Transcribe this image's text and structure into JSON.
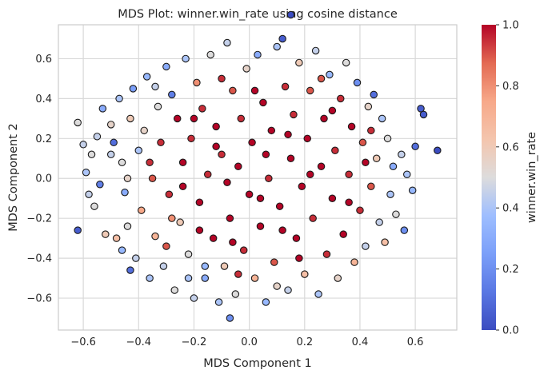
{
  "chart_data": {
    "type": "scatter",
    "title": "MDS Plot: winner.win_rate using cosine distance",
    "xlabel": "MDS Component 1",
    "ylabel": "MDS Component 2",
    "xlim": [
      -0.69,
      0.75
    ],
    "ylim": [
      -0.76,
      0.77
    ],
    "x_ticks": [
      -0.6,
      -0.4,
      -0.2,
      0.0,
      0.2,
      0.4,
      0.6
    ],
    "x_tick_labels": [
      "−0.6",
      "−0.4",
      "−0.2",
      "0.0",
      "0.2",
      "0.4",
      "0.6"
    ],
    "y_ticks": [
      -0.6,
      -0.4,
      -0.2,
      0.0,
      0.2,
      0.4,
      0.6
    ],
    "y_tick_labels": [
      "−0.6",
      "−0.4",
      "−0.2",
      "0.0",
      "0.2",
      "0.4",
      "0.6"
    ],
    "grid": true,
    "colormap": "coolwarm",
    "colorbar": {
      "label": "winner.win_rate",
      "range": [
        0.0,
        1.0
      ],
      "ticks": [
        0.0,
        0.2,
        0.4,
        0.6,
        0.8,
        1.0
      ],
      "tick_labels": [
        "0.0",
        "0.2",
        "0.4",
        "0.6",
        "0.8",
        "1.0"
      ]
    },
    "points": [
      {
        "x": -0.62,
        "y": 0.28,
        "c": 0.5
      },
      {
        "x": -0.62,
        "y": -0.26,
        "c": 0.05
      },
      {
        "x": -0.6,
        "y": 0.17,
        "c": 0.45
      },
      {
        "x": -0.59,
        "y": 0.03,
        "c": 0.4
      },
      {
        "x": -0.58,
        "y": -0.08,
        "c": 0.45
      },
      {
        "x": -0.57,
        "y": 0.12,
        "c": 0.5
      },
      {
        "x": -0.56,
        "y": -0.14,
        "c": 0.5
      },
      {
        "x": -0.55,
        "y": 0.21,
        "c": 0.45
      },
      {
        "x": -0.54,
        "y": -0.03,
        "c": 0.15
      },
      {
        "x": -0.53,
        "y": 0.35,
        "c": 0.3
      },
      {
        "x": -0.52,
        "y": -0.28,
        "c": 0.6
      },
      {
        "x": -0.5,
        "y": 0.27,
        "c": 0.55
      },
      {
        "x": -0.49,
        "y": 0.18,
        "c": 0.1
      },
      {
        "x": -0.48,
        "y": -0.3,
        "c": 0.65
      },
      {
        "x": -0.47,
        "y": 0.4,
        "c": 0.4
      },
      {
        "x": -0.46,
        "y": -0.36,
        "c": 0.35
      },
      {
        "x": -0.46,
        "y": 0.08,
        "c": 0.5
      },
      {
        "x": -0.45,
        "y": -0.07,
        "c": 0.3
      },
      {
        "x": -0.44,
        "y": -0.24,
        "c": 0.5
      },
      {
        "x": -0.43,
        "y": 0.3,
        "c": 0.6
      },
      {
        "x": -0.43,
        "y": -0.46,
        "c": 0.1
      },
      {
        "x": -0.42,
        "y": 0.45,
        "c": 0.25
      },
      {
        "x": -0.41,
        "y": -0.4,
        "c": 0.45
      },
      {
        "x": -0.4,
        "y": 0.14,
        "c": 0.4
      },
      {
        "x": -0.39,
        "y": -0.16,
        "c": 0.75
      },
      {
        "x": -0.38,
        "y": 0.24,
        "c": 0.55
      },
      {
        "x": -0.37,
        "y": 0.51,
        "c": 0.35
      },
      {
        "x": -0.36,
        "y": -0.5,
        "c": 0.4
      },
      {
        "x": -0.35,
        "y": 0.0,
        "c": 0.9
      },
      {
        "x": -0.34,
        "y": -0.29,
        "c": 0.7
      },
      {
        "x": -0.33,
        "y": 0.36,
        "c": 0.5
      },
      {
        "x": -0.32,
        "y": 0.18,
        "c": 0.95
      },
      {
        "x": -0.31,
        "y": -0.44,
        "c": 0.45
      },
      {
        "x": -0.3,
        "y": 0.56,
        "c": 0.3
      },
      {
        "x": -0.29,
        "y": -0.08,
        "c": 0.95
      },
      {
        "x": -0.28,
        "y": 0.42,
        "c": 0.15
      },
      {
        "x": -0.27,
        "y": -0.56,
        "c": 0.5
      },
      {
        "x": -0.26,
        "y": 0.3,
        "c": 1.0
      },
      {
        "x": -0.25,
        "y": -0.22,
        "c": 0.6
      },
      {
        "x": -0.24,
        "y": 0.08,
        "c": 1.0
      },
      {
        "x": -0.23,
        "y": 0.6,
        "c": 0.4
      },
      {
        "x": -0.22,
        "y": -0.38,
        "c": 0.5
      },
      {
        "x": -0.21,
        "y": 0.2,
        "c": 0.95
      },
      {
        "x": -0.2,
        "y": -0.6,
        "c": 0.45
      },
      {
        "x": -0.19,
        "y": 0.48,
        "c": 0.8
      },
      {
        "x": -0.18,
        "y": -0.12,
        "c": 1.0
      },
      {
        "x": -0.17,
        "y": 0.35,
        "c": 0.95
      },
      {
        "x": -0.16,
        "y": -0.5,
        "c": 0.3
      },
      {
        "x": -0.15,
        "y": 0.02,
        "c": 0.95
      },
      {
        "x": -0.14,
        "y": 0.62,
        "c": 0.5
      },
      {
        "x": -0.13,
        "y": -0.3,
        "c": 1.0
      },
      {
        "x": -0.12,
        "y": 0.26,
        "c": 1.0
      },
      {
        "x": -0.11,
        "y": -0.62,
        "c": 0.4
      },
      {
        "x": -0.1,
        "y": 0.12,
        "c": 0.95
      },
      {
        "x": -0.09,
        "y": -0.44,
        "c": 0.6
      },
      {
        "x": -0.08,
        "y": 0.68,
        "c": 0.45
      },
      {
        "x": -0.07,
        "y": -0.2,
        "c": 1.0
      },
      {
        "x": -0.06,
        "y": 0.44,
        "c": 0.9
      },
      {
        "x": -0.05,
        "y": -0.58,
        "c": 0.5
      },
      {
        "x": -0.04,
        "y": 0.06,
        "c": 1.0
      },
      {
        "x": -0.03,
        "y": 0.3,
        "c": 0.95
      },
      {
        "x": -0.02,
        "y": -0.36,
        "c": 0.95
      },
      {
        "x": -0.01,
        "y": 0.55,
        "c": 0.55
      },
      {
        "x": 0.0,
        "y": -0.08,
        "c": 1.0
      },
      {
        "x": 0.01,
        "y": 0.18,
        "c": 1.0
      },
      {
        "x": 0.02,
        "y": -0.5,
        "c": 0.7
      },
      {
        "x": 0.03,
        "y": 0.62,
        "c": 0.3
      },
      {
        "x": 0.04,
        "y": -0.24,
        "c": 1.0
      },
      {
        "x": 0.05,
        "y": 0.38,
        "c": 1.0
      },
      {
        "x": 0.06,
        "y": -0.62,
        "c": 0.35
      },
      {
        "x": 0.07,
        "y": 0.0,
        "c": 0.95
      },
      {
        "x": 0.08,
        "y": 0.24,
        "c": 1.0
      },
      {
        "x": 0.09,
        "y": -0.42,
        "c": 0.9
      },
      {
        "x": 0.1,
        "y": 0.66,
        "c": 0.4
      },
      {
        "x": 0.11,
        "y": -0.14,
        "c": 1.0
      },
      {
        "x": 0.12,
        "y": 0.7,
        "c": 0.05
      },
      {
        "x": 0.13,
        "y": 0.46,
        "c": 0.95
      },
      {
        "x": 0.14,
        "y": -0.56,
        "c": 0.45
      },
      {
        "x": 0.15,
        "y": 0.1,
        "c": 1.0
      },
      {
        "x": 0.16,
        "y": 0.32,
        "c": 0.95
      },
      {
        "x": 0.17,
        "y": -0.3,
        "c": 1.0
      },
      {
        "x": 0.18,
        "y": 0.58,
        "c": 0.6
      },
      {
        "x": 0.19,
        "y": -0.04,
        "c": 1.0
      },
      {
        "x": 0.2,
        "y": -0.48,
        "c": 0.65
      },
      {
        "x": 0.21,
        "y": 0.2,
        "c": 1.0
      },
      {
        "x": 0.22,
        "y": 0.44,
        "c": 0.9
      },
      {
        "x": 0.23,
        "y": -0.2,
        "c": 0.95
      },
      {
        "x": 0.24,
        "y": 0.64,
        "c": 0.45
      },
      {
        "x": 0.25,
        "y": -0.58,
        "c": 0.4
      },
      {
        "x": 0.26,
        "y": 0.06,
        "c": 1.0
      },
      {
        "x": 0.27,
        "y": 0.3,
        "c": 1.0
      },
      {
        "x": 0.28,
        "y": -0.38,
        "c": 0.95
      },
      {
        "x": 0.29,
        "y": 0.52,
        "c": 0.35
      },
      {
        "x": 0.3,
        "y": -0.1,
        "c": 1.0
      },
      {
        "x": 0.31,
        "y": 0.14,
        "c": 0.95
      },
      {
        "x": 0.32,
        "y": -0.5,
        "c": 0.55
      },
      {
        "x": 0.33,
        "y": 0.4,
        "c": 0.95
      },
      {
        "x": 0.34,
        "y": -0.28,
        "c": 1.0
      },
      {
        "x": 0.35,
        "y": 0.58,
        "c": 0.5
      },
      {
        "x": 0.36,
        "y": 0.02,
        "c": 0.95
      },
      {
        "x": 0.37,
        "y": 0.26,
        "c": 1.0
      },
      {
        "x": 0.38,
        "y": -0.42,
        "c": 0.7
      },
      {
        "x": 0.39,
        "y": 0.48,
        "c": 0.2
      },
      {
        "x": 0.4,
        "y": -0.16,
        "c": 0.95
      },
      {
        "x": 0.41,
        "y": 0.18,
        "c": 0.9
      },
      {
        "x": 0.42,
        "y": -0.34,
        "c": 0.45
      },
      {
        "x": 0.43,
        "y": 0.36,
        "c": 0.55
      },
      {
        "x": 0.44,
        "y": -0.04,
        "c": 0.9
      },
      {
        "x": 0.45,
        "y": 0.42,
        "c": 0.1
      },
      {
        "x": 0.46,
        "y": 0.1,
        "c": 0.6
      },
      {
        "x": 0.47,
        "y": -0.22,
        "c": 0.45
      },
      {
        "x": 0.48,
        "y": 0.3,
        "c": 0.4
      },
      {
        "x": 0.49,
        "y": -0.32,
        "c": 0.65
      },
      {
        "x": 0.5,
        "y": 0.2,
        "c": 0.5
      },
      {
        "x": 0.51,
        "y": -0.08,
        "c": 0.4
      },
      {
        "x": 0.52,
        "y": 0.06,
        "c": 0.3
      },
      {
        "x": 0.53,
        "y": -0.18,
        "c": 0.5
      },
      {
        "x": 0.55,
        "y": 0.12,
        "c": 0.45
      },
      {
        "x": 0.56,
        "y": -0.26,
        "c": 0.2
      },
      {
        "x": 0.57,
        "y": 0.02,
        "c": 0.4
      },
      {
        "x": 0.59,
        "y": -0.06,
        "c": 0.35
      },
      {
        "x": 0.6,
        "y": 0.16,
        "c": 0.1
      },
      {
        "x": 0.62,
        "y": 0.35,
        "c": 0.05
      },
      {
        "x": 0.63,
        "y": 0.32,
        "c": 0.05
      },
      {
        "x": 0.68,
        "y": 0.14,
        "c": 0.0
      },
      {
        "x": 0.15,
        "y": 0.82,
        "c": 0.0
      },
      {
        "x": -0.07,
        "y": -0.7,
        "c": 0.2
      },
      {
        "x": -0.16,
        "y": -0.44,
        "c": 0.35
      },
      {
        "x": -0.28,
        "y": -0.2,
        "c": 0.8
      },
      {
        "x": -0.36,
        "y": 0.08,
        "c": 0.95
      },
      {
        "x": -0.24,
        "y": -0.04,
        "c": 1.0
      },
      {
        "x": -0.12,
        "y": 0.16,
        "c": 1.0
      },
      {
        "x": 0.06,
        "y": 0.12,
        "c": 1.0
      },
      {
        "x": 0.12,
        "y": -0.26,
        "c": 1.0
      },
      {
        "x": 0.22,
        "y": 0.02,
        "c": 1.0
      },
      {
        "x": 0.3,
        "y": 0.34,
        "c": 1.0
      },
      {
        "x": -0.06,
        "y": -0.32,
        "c": 1.0
      },
      {
        "x": -0.2,
        "y": 0.3,
        "c": 1.0
      },
      {
        "x": 0.02,
        "y": 0.44,
        "c": 1.0
      },
      {
        "x": 0.18,
        "y": -0.4,
        "c": 1.0
      },
      {
        "x": 0.36,
        "y": -0.12,
        "c": 1.0
      },
      {
        "x": -0.3,
        "y": -0.34,
        "c": 0.9
      },
      {
        "x": -0.44,
        "y": 0.0,
        "c": 0.55
      },
      {
        "x": -0.5,
        "y": 0.12,
        "c": 0.45
      },
      {
        "x": 0.42,
        "y": 0.08,
        "c": 1.0
      },
      {
        "x": 0.26,
        "y": 0.5,
        "c": 0.9
      },
      {
        "x": -0.1,
        "y": 0.5,
        "c": 0.95
      },
      {
        "x": -0.04,
        "y": -0.48,
        "c": 0.95
      },
      {
        "x": 0.1,
        "y": -0.54,
        "c": 0.55
      },
      {
        "x": -0.22,
        "y": -0.5,
        "c": 0.4
      },
      {
        "x": -0.34,
        "y": 0.46,
        "c": 0.45
      },
      {
        "x": 0.44,
        "y": 0.24,
        "c": 0.95
      },
      {
        "x": 0.14,
        "y": 0.22,
        "c": 1.0
      },
      {
        "x": -0.18,
        "y": -0.26,
        "c": 1.0
      },
      {
        "x": -0.08,
        "y": -0.02,
        "c": 1.0
      },
      {
        "x": 0.04,
        "y": -0.1,
        "c": 1.0
      }
    ]
  }
}
